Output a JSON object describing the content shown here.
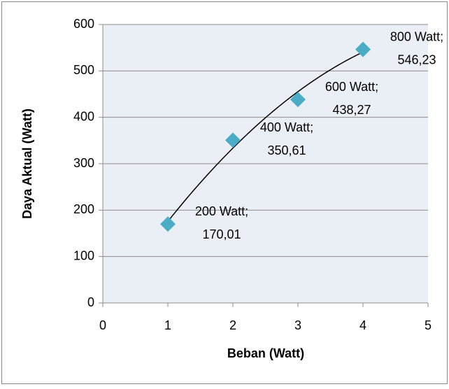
{
  "chart_data": {
    "type": "scatter",
    "x_label": "Beban (Watt)",
    "y_label": "Daya Aktual (Watt)",
    "x": [
      1,
      2,
      3,
      4
    ],
    "values": [
      170.01,
      350.61,
      438.27,
      546.23
    ],
    "point_labels": [
      "200 Watt;",
      "400 Watt;",
      "600 Watt;",
      "800 Watt;"
    ],
    "value_labels": [
      "170,01",
      "350,61",
      "438,27",
      "546,23"
    ],
    "color": "#4bacc6",
    "trendline": {
      "type": "polynomial",
      "order": 2,
      "color": "#000000"
    },
    "xlim": [
      0,
      5
    ],
    "xticks": [
      0,
      1,
      2,
      3,
      4,
      5
    ],
    "ylim": [
      0,
      600
    ],
    "yticks": [
      0,
      100,
      200,
      300,
      400,
      500,
      600
    ],
    "grid": true
  }
}
